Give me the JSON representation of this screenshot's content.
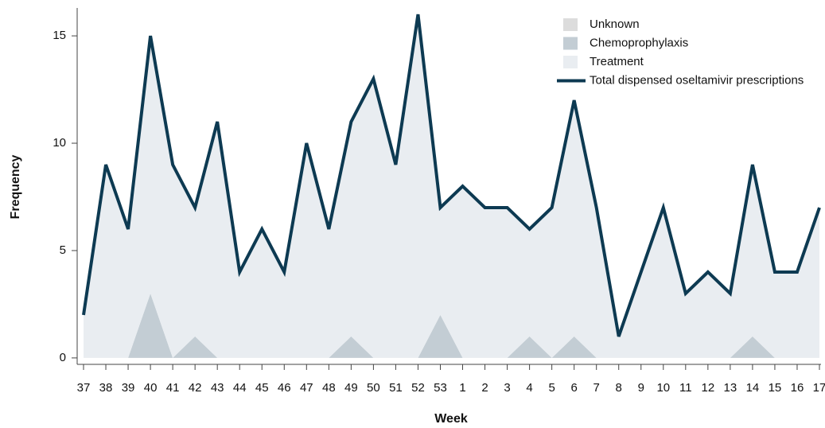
{
  "chart_data": {
    "type": "area",
    "x_label": "Week",
    "y_label": "Frequency",
    "categories": [
      "37",
      "38",
      "39",
      "40",
      "41",
      "42",
      "43",
      "44",
      "45",
      "46",
      "47",
      "48",
      "49",
      "50",
      "51",
      "52",
      "53",
      "1",
      "2",
      "3",
      "4",
      "5",
      "6",
      "7",
      "8",
      "9",
      "10",
      "11",
      "12",
      "13",
      "14",
      "15",
      "16",
      "17"
    ],
    "series": [
      {
        "name": "Unknown",
        "type": "area",
        "color": "#dcdcdc",
        "values": [
          0,
          0,
          0,
          0,
          0,
          0,
          0,
          0,
          0,
          0,
          0,
          0,
          0,
          0,
          0,
          0,
          0,
          0,
          0,
          0,
          0,
          0,
          0,
          0,
          0,
          0,
          0,
          0,
          0,
          0,
          0,
          0,
          0,
          0
        ]
      },
      {
        "name": "Chemoprophylaxis",
        "type": "area",
        "color": "#c3cdd4",
        "values": [
          0,
          0,
          0,
          3,
          0,
          1,
          0,
          0,
          0,
          0,
          0,
          0,
          1,
          0,
          0,
          0,
          2,
          0,
          0,
          0,
          1,
          0,
          1,
          0,
          0,
          0,
          0,
          0,
          0,
          0,
          1,
          0,
          0,
          0
        ]
      },
      {
        "name": "Treatment",
        "type": "area",
        "color": "#e9edf1",
        "values": [
          2,
          9,
          6,
          12,
          9,
          6,
          11,
          4,
          6,
          4,
          10,
          6,
          10,
          13,
          9,
          16,
          5,
          8,
          7,
          7,
          5,
          7,
          11,
          7,
          1,
          4,
          7,
          3,
          4,
          3,
          8,
          4,
          4,
          7
        ]
      },
      {
        "name": "Total dispensed oseltamivir prescriptions",
        "type": "line",
        "color": "#0d3a52",
        "values": [
          2,
          9,
          6,
          15,
          9,
          7,
          11,
          4,
          6,
          4,
          10,
          6,
          11,
          13,
          9,
          16,
          7,
          8,
          7,
          7,
          6,
          7,
          12,
          7,
          1,
          4,
          7,
          3,
          4,
          3,
          9,
          4,
          4,
          7
        ]
      }
    ],
    "ylim": [
      -0.3,
      16.3
    ],
    "yticks": [
      0,
      5,
      10,
      15
    ],
    "legend": "top-right"
  }
}
